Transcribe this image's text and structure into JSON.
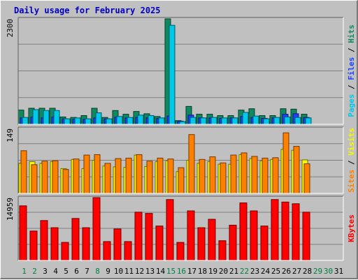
{
  "chart_data": {
    "title": "Daily usage for February 2025",
    "type": "bar",
    "days": [
      "1",
      "2",
      "3",
      "4",
      "5",
      "6",
      "7",
      "8",
      "9",
      "10",
      "11",
      "12",
      "13",
      "14",
      "15",
      "16",
      "17",
      "18",
      "19",
      "20",
      "21",
      "22",
      "23",
      "24",
      "25",
      "26",
      "27",
      "28",
      "29",
      "30",
      "31"
    ],
    "weekend_days": [
      "1",
      "2",
      "8",
      "15",
      "16",
      "22",
      "29",
      "30"
    ],
    "colors": {
      "pages": "#00c8e8",
      "files": "#2040ff",
      "hits": "#108860",
      "visits": "#f8f800",
      "sites": "#ff8000",
      "kbytes": "#ff0000",
      "weekend_label": "#008040",
      "weekday_label": "#000000",
      "future_label": "#00a000",
      "title": "#0000c0"
    },
    "panels": [
      {
        "id": "top",
        "max_label": "2300",
        "ymax": 2300,
        "legend": [
          {
            "label": "Hits",
            "color": "#108860"
          },
          {
            "label": "Files",
            "color": "#2040ff"
          },
          {
            "label": "Pages",
            "color": "#00c8e8"
          }
        ],
        "series": [
          {
            "name": "Hits",
            "color": "#108860",
            "values": [
              310,
              350,
              350,
              350,
              160,
              150,
              190,
              350,
              150,
              300,
              220,
              280,
              230,
              170,
              2300,
              80,
              390,
              220,
              220,
              190,
              190,
              310,
              340,
              190,
              190,
              340,
              330,
              220,
              0,
              0,
              0
            ]
          },
          {
            "name": "Files",
            "color": "#2040ff",
            "values": [
              140,
              160,
              140,
              160,
              120,
              110,
              110,
              140,
              120,
              160,
              140,
              150,
              140,
              130,
              180,
              70,
              200,
              140,
              140,
              130,
              140,
              170,
              150,
              130,
              140,
              220,
              230,
              150,
              0,
              0,
              0
            ]
          },
          {
            "name": "Pages",
            "color": "#00c8e8",
            "values": [
              150,
              320,
              300,
              300,
              120,
              140,
              120,
              250,
              120,
              170,
              150,
              200,
              190,
              140,
              2160,
              60,
              150,
              140,
              150,
              140,
              140,
              260,
              180,
              120,
              150,
              160,
              150,
              140,
              0,
              0,
              0
            ]
          }
        ]
      },
      {
        "id": "middle",
        "max_label": "149",
        "ymax": 149,
        "legend": [
          {
            "label": "Visits",
            "color": "#f8f800"
          },
          {
            "label": "Sites",
            "color": "#ff8000"
          }
        ],
        "series": [
          {
            "name": "Visits",
            "color": "#f8f800",
            "values": [
              69,
              73,
              69,
              73,
              57,
              78,
              57,
              76,
              63,
              61,
              60,
              88,
              62,
              73,
              75,
              50,
              76,
              69,
              73,
              67,
              67,
              89,
              80,
              75,
              78,
              101,
              99,
              77,
              0,
              0,
              0
            ]
          },
          {
            "name": "Sites",
            "color": "#ff8000",
            "values": [
              98,
              66,
              74,
              75,
              55,
              79,
              88,
              89,
              69,
              80,
              81,
              89,
              74,
              81,
              79,
              59,
              135,
              78,
              84,
              70,
              88,
              93,
              85,
              81,
              82,
              139,
              108,
              68,
              0,
              0,
              0
            ]
          }
        ]
      },
      {
        "id": "bottom",
        "max_label": "14959",
        "ymax": 14959,
        "legend": [
          {
            "label": "KBytes",
            "color": "#ff0000"
          }
        ],
        "series": [
          {
            "name": "KBytes",
            "color": "#ff0000",
            "values": [
              13000,
              7000,
              9500,
              7800,
              4300,
              10000,
              7800,
              14959,
              4500,
              7500,
              4500,
              11500,
              11200,
              8200,
              14500,
              4300,
              11800,
              7800,
              9800,
              4700,
              8400,
              13700,
              11800,
              8200,
              14500,
              13900,
              13500,
              11500,
              0,
              0,
              0
            ]
          }
        ]
      }
    ]
  }
}
